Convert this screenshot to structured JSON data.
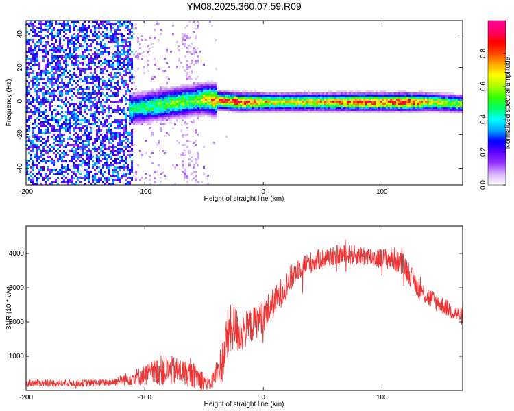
{
  "figure_title": "YM08.2025.360.07.59.R09",
  "chart_data": [
    {
      "type": "heatmap",
      "xlabel": "Height of straight line (km)",
      "ylabel": "Frequency (Hz)",
      "xlim": [
        -200,
        168
      ],
      "ylim": [
        -50,
        48
      ],
      "xticks": [
        -200,
        -100,
        0,
        100
      ],
      "yticks": [
        -40,
        -20,
        0,
        20,
        40
      ],
      "colorbar": {
        "label": "Normalized spectral amplitude",
        "range": [
          0,
          1
        ],
        "ticks": [
          "0.0",
          "0.2",
          "0.4",
          "0.6",
          "0.8"
        ],
        "colors": [
          "#ffffff",
          "#d9b3ff",
          "#9933ff",
          "#5a00ff",
          "#0000ff",
          "#00aaff",
          "#00ffff",
          "#00ff66",
          "#33ff00",
          "#aaff00",
          "#ffff00",
          "#ffaa00",
          "#ff4400",
          "#ff0000",
          "#ff0066",
          "#ff0099"
        ]
      },
      "ridge": {
        "description": "narrow high-amplitude band centred near 0 Hz",
        "x": [
          -110,
          -90,
          -70,
          -60,
          -50,
          -40,
          -20,
          0,
          20,
          50,
          85,
          100,
          120,
          140,
          168
        ],
        "frequency": [
          -4,
          -2,
          0,
          1,
          2,
          1,
          0,
          0,
          0,
          0,
          0,
          0,
          0,
          0,
          -1
        ],
        "amplitude": [
          0.5,
          0.55,
          0.6,
          0.55,
          0.7,
          0.85,
          0.95,
          0.75,
          0.7,
          0.75,
          0.9,
          0.85,
          0.95,
          0.7,
          0.6
        ]
      },
      "noise_region": {
        "x_range": [
          -200,
          -110
        ],
        "frequency_range": [
          -50,
          48
        ],
        "amplitude": 0.25
      }
    },
    {
      "type": "line",
      "xlabel": "Height of straight line (km)",
      "ylabel": "SNR (10 * v/v)",
      "xlim": [
        -200,
        168
      ],
      "ylim": [
        0,
        4800
      ],
      "xticks": [
        -200,
        -100,
        0,
        100
      ],
      "yticks": [
        1000,
        2000,
        3000,
        4000
      ],
      "color": "#ee3333",
      "envelope": {
        "x": [
          -200,
          -160,
          -130,
          -120,
          -100,
          -85,
          -70,
          -55,
          -45,
          -35,
          -30,
          -25,
          -20,
          -10,
          0,
          10,
          20,
          30,
          45,
          60,
          80,
          100,
          110,
          120,
          130,
          140,
          150,
          168
        ],
        "center": [
          220,
          210,
          230,
          300,
          450,
          600,
          550,
          400,
          150,
          800,
          1600,
          1900,
          1650,
          1900,
          2200,
          2600,
          3100,
          3600,
          3800,
          3950,
          3950,
          3850,
          3850,
          3600,
          3000,
          2700,
          2500,
          2150
        ],
        "spread": [
          100,
          100,
          100,
          150,
          300,
          450,
          400,
          350,
          150,
          600,
          800,
          700,
          600,
          500,
          500,
          450,
          400,
          350,
          300,
          300,
          300,
          300,
          350,
          350,
          300,
          300,
          250,
          250
        ]
      }
    }
  ]
}
